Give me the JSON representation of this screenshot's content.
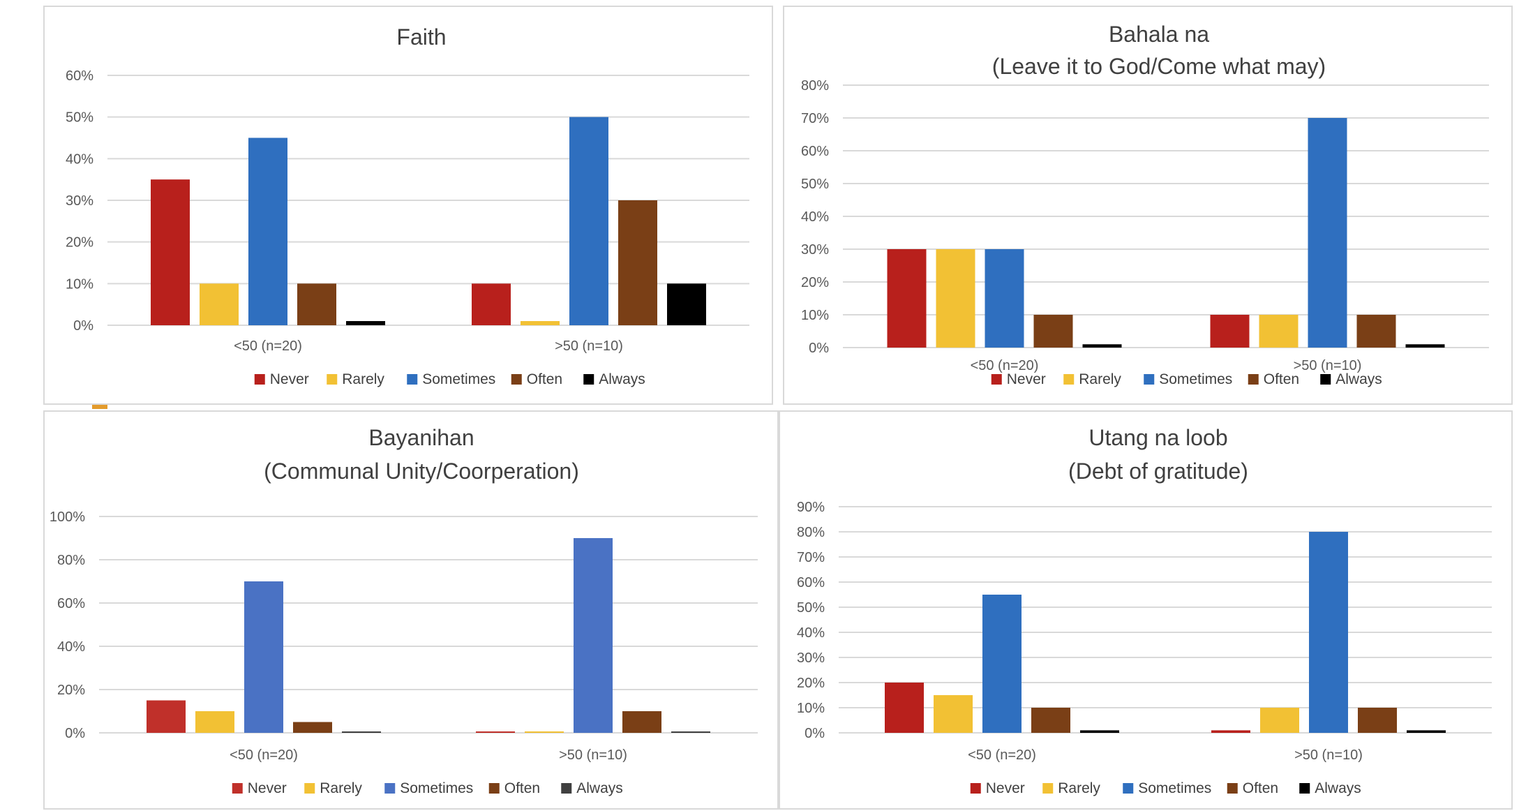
{
  "legend_labels": [
    "Never",
    "Rarely",
    "Sometimes",
    "Often",
    "Always"
  ],
  "chart_data": [
    {
      "type": "bar",
      "title": "Faith",
      "categories": [
        "<50 (n=20)",
        ">50 (n=10)"
      ],
      "y_ticks": [
        "0%",
        "10%",
        "20%",
        "30%",
        "40%",
        "50%",
        "60%"
      ],
      "ylim": [
        0,
        60
      ],
      "grid": true,
      "legend_position": "bottom",
      "colors": [
        "#b8201c",
        "#f2c134",
        "#2f6fbf",
        "#7a3f16",
        "#000000"
      ],
      "series": [
        {
          "name": "Never",
          "values": [
            35,
            10
          ]
        },
        {
          "name": "Rarely",
          "values": [
            10,
            1
          ]
        },
        {
          "name": "Sometimes",
          "values": [
            45,
            50
          ]
        },
        {
          "name": "Often",
          "values": [
            10,
            30
          ]
        },
        {
          "name": "Always",
          "values": [
            1,
            10
          ]
        }
      ]
    },
    {
      "type": "bar",
      "title": "Bahala na\n(Leave it to God/Come what may)",
      "categories": [
        "<50 (n=20)",
        ">50 (n=10)"
      ],
      "y_ticks": [
        "0%",
        "10%",
        "20%",
        "30%",
        "40%",
        "50%",
        "60%",
        "70%",
        "80%"
      ],
      "ylim": [
        0,
        80
      ],
      "grid": true,
      "legend_position": "bottom",
      "colors": [
        "#b8201c",
        "#f2c134",
        "#2f6fbf",
        "#7a3f16",
        "#000000"
      ],
      "series": [
        {
          "name": "Never",
          "values": [
            30,
            10
          ]
        },
        {
          "name": "Rarely",
          "values": [
            30,
            10
          ]
        },
        {
          "name": "Sometimes",
          "values": [
            30,
            70
          ]
        },
        {
          "name": "Often",
          "values": [
            10,
            10
          ]
        },
        {
          "name": "Always",
          "values": [
            1,
            1
          ]
        }
      ]
    },
    {
      "type": "bar",
      "title": "Bayanihan\n(Communal Unity/Coorperation)",
      "categories": [
        "<50 (n=20)",
        ">50 (n=10)"
      ],
      "y_ticks": [
        "0%",
        "20%",
        "40%",
        "60%",
        "80%",
        "100%"
      ],
      "ylim": [
        0,
        100
      ],
      "grid": true,
      "legend_position": "bottom",
      "colors": [
        "#c0302a",
        "#f2c134",
        "#4a72c4",
        "#7a3f16",
        "#404040"
      ],
      "series": [
        {
          "name": "Never",
          "values": [
            15,
            0.5
          ]
        },
        {
          "name": "Rarely",
          "values": [
            10,
            0.5
          ]
        },
        {
          "name": "Sometimes",
          "values": [
            70,
            90
          ]
        },
        {
          "name": "Often",
          "values": [
            5,
            10
          ]
        },
        {
          "name": "Always",
          "values": [
            0.5,
            0.5
          ]
        }
      ]
    },
    {
      "type": "bar",
      "title": "Utang na loob\n(Debt of gratitude)",
      "categories": [
        "<50 (n=20)",
        ">50 (n=10)"
      ],
      "y_ticks": [
        "0%",
        "10%",
        "20%",
        "30%",
        "40%",
        "50%",
        "60%",
        "70%",
        "80%",
        "90%"
      ],
      "ylim": [
        0,
        90
      ],
      "grid": true,
      "legend_position": "bottom",
      "colors": [
        "#b8201c",
        "#f2c134",
        "#2f6fbf",
        "#7a3f16",
        "#000000"
      ],
      "series": [
        {
          "name": "Never",
          "values": [
            20,
            1
          ]
        },
        {
          "name": "Rarely",
          "values": [
            15,
            10
          ]
        },
        {
          "name": "Sometimes",
          "values": [
            55,
            80
          ]
        },
        {
          "name": "Often",
          "values": [
            10,
            10
          ]
        },
        {
          "name": "Always",
          "values": [
            1,
            1
          ]
        }
      ]
    }
  ]
}
